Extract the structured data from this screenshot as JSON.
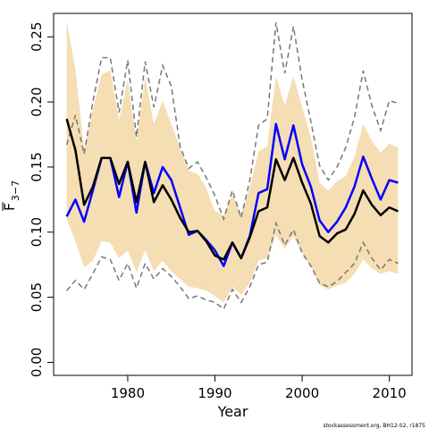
{
  "chart_data": {
    "type": "line",
    "xlabel": "Year",
    "ylabel_main": "F",
    "ylabel_sub": "3−7",
    "credit": "stockassessment.org, BH12-S2, r1875",
    "xlim": [
      1971.5,
      2012.6
    ],
    "ylim": [
      -0.01,
      0.268
    ],
    "xticks": [
      1980,
      1990,
      2000,
      2010
    ],
    "yticks": [
      0.0,
      0.05,
      0.1,
      0.15,
      0.2,
      0.25
    ],
    "ytick_labels": [
      "0.00",
      "0.05",
      "0.10",
      "0.15",
      "0.20",
      "0.25"
    ],
    "colors": {
      "band": "#f5deb3",
      "band_bounds": "#777777",
      "estimate": "#000000",
      "comparison": "#0000ff"
    },
    "x": [
      1973,
      1974,
      1975,
      1976,
      1977,
      1978,
      1979,
      1980,
      1981,
      1982,
      1983,
      1984,
      1985,
      1986,
      1987,
      1988,
      1989,
      1990,
      1991,
      1992,
      1993,
      1994,
      1995,
      1996,
      1997,
      1998,
      1999,
      2000,
      2001,
      2002,
      2003,
      2004,
      2005,
      2006,
      2007,
      2008,
      2009,
      2010,
      2011
    ],
    "series": [
      {
        "role": "lower-bound",
        "values": [
          0.055,
          0.063,
          0.056,
          0.068,
          0.081,
          0.079,
          0.063,
          0.076,
          0.057,
          0.076,
          0.064,
          0.072,
          0.066,
          0.058,
          0.049,
          0.051,
          0.048,
          0.046,
          0.041,
          0.056,
          0.046,
          0.058,
          0.075,
          0.077,
          0.107,
          0.09,
          0.102,
          0.084,
          0.074,
          0.061,
          0.058,
          0.062,
          0.069,
          0.076,
          0.092,
          0.08,
          0.071,
          0.079,
          0.076
        ]
      },
      {
        "role": "upper-bound",
        "values": [
          0.167,
          0.19,
          0.16,
          0.2,
          0.234,
          0.234,
          0.192,
          0.232,
          0.173,
          0.231,
          0.196,
          0.228,
          0.212,
          0.166,
          0.149,
          0.154,
          0.142,
          0.128,
          0.11,
          0.132,
          0.111,
          0.14,
          0.182,
          0.187,
          0.261,
          0.222,
          0.258,
          0.217,
          0.185,
          0.151,
          0.14,
          0.15,
          0.165,
          0.188,
          0.224,
          0.197,
          0.178,
          0.201,
          0.199
        ]
      },
      {
        "role": "band-lower",
        "values": [
          0.11,
          0.093,
          0.073,
          0.078,
          0.093,
          0.092,
          0.08,
          0.086,
          0.069,
          0.086,
          0.07,
          0.078,
          0.07,
          0.064,
          0.058,
          0.057,
          0.055,
          0.051,
          0.046,
          0.058,
          0.052,
          0.061,
          0.078,
          0.08,
          0.098,
          0.087,
          0.097,
          0.084,
          0.074,
          0.059,
          0.056,
          0.059,
          0.061,
          0.068,
          0.079,
          0.072,
          0.068,
          0.07,
          0.068
        ]
      },
      {
        "role": "band-upper",
        "values": [
          0.262,
          0.225,
          0.163,
          0.194,
          0.221,
          0.224,
          0.186,
          0.217,
          0.17,
          0.219,
          0.183,
          0.201,
          0.183,
          0.165,
          0.147,
          0.145,
          0.134,
          0.116,
          0.113,
          0.129,
          0.114,
          0.134,
          0.162,
          0.166,
          0.22,
          0.197,
          0.22,
          0.196,
          0.173,
          0.138,
          0.132,
          0.139,
          0.143,
          0.158,
          0.183,
          0.17,
          0.161,
          0.168,
          0.165
        ]
      },
      {
        "role": "estimate",
        "values": [
          0.187,
          0.163,
          0.121,
          0.135,
          0.157,
          0.157,
          0.137,
          0.154,
          0.123,
          0.154,
          0.123,
          0.136,
          0.125,
          0.111,
          0.1,
          0.101,
          0.093,
          0.082,
          0.079,
          0.092,
          0.08,
          0.096,
          0.116,
          0.119,
          0.156,
          0.14,
          0.157,
          0.138,
          0.122,
          0.097,
          0.092,
          0.099,
          0.102,
          0.114,
          0.132,
          0.121,
          0.113,
          0.119,
          0.116
        ]
      },
      {
        "role": "comparison",
        "values": [
          0.112,
          0.125,
          0.108,
          0.132,
          0.157,
          0.157,
          0.127,
          0.154,
          0.115,
          0.154,
          0.13,
          0.15,
          0.14,
          0.119,
          0.098,
          0.101,
          0.094,
          0.086,
          0.074,
          0.092,
          0.08,
          0.097,
          0.13,
          0.133,
          0.183,
          0.156,
          0.182,
          0.152,
          0.135,
          0.109,
          0.1,
          0.108,
          0.119,
          0.135,
          0.158,
          0.141,
          0.125,
          0.14,
          0.138
        ]
      }
    ]
  }
}
